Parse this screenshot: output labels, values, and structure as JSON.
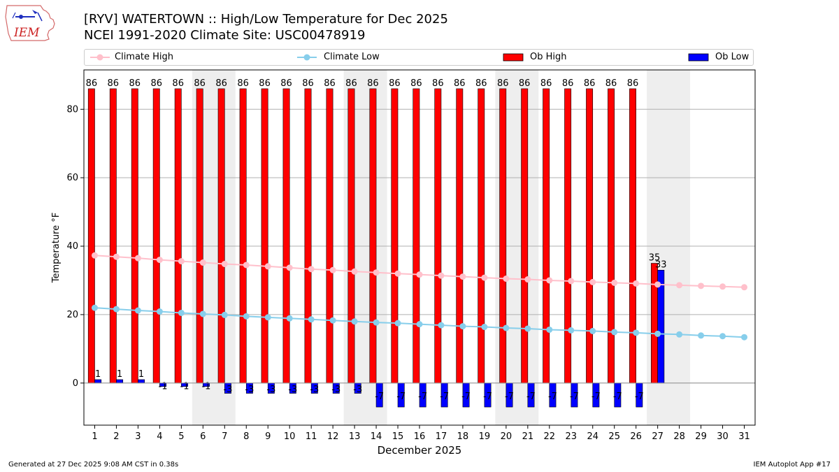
{
  "header": {
    "title_line1": "[RYV] WATERTOWN :: High/Low Temperature for Dec 2025",
    "title_line2": "NCEI 1991-2020 Climate Site: USC00478919"
  },
  "logo": {
    "text": "IEM"
  },
  "footer": {
    "generated": "Generated at 27 Dec 2025 9:08 AM CST in 0.38s",
    "app": "IEM Autoplot App #17"
  },
  "colors": {
    "ob_high": "#ff0000",
    "ob_low": "#0000ff",
    "climate_high": "#ffc0cb",
    "climate_low": "#87ceeb",
    "weekend_shade": "#eeeeee",
    "grid": "#b0b0b0"
  },
  "chart_data": {
    "type": "bar",
    "title": "[RYV] WATERTOWN :: High/Low Temperature for Dec 2025",
    "subtitle": "NCEI 1991-2020 Climate Site: USC00478919",
    "xlabel": "December 2025",
    "ylabel": "Temperature °F",
    "ylim": [
      -12.3,
      91.5
    ],
    "xlim": [
      0.5,
      31.5
    ],
    "yticks": [
      0,
      20,
      40,
      60,
      80
    ],
    "grid": true,
    "legend_position": "top",
    "categories": [
      "1",
      "2",
      "3",
      "4",
      "5",
      "6",
      "7",
      "8",
      "9",
      "10",
      "11",
      "12",
      "13",
      "14",
      "15",
      "16",
      "17",
      "18",
      "19",
      "20",
      "21",
      "22",
      "23",
      "24",
      "25",
      "26",
      "27",
      "28",
      "29",
      "30",
      "31"
    ],
    "shaded_days": [
      [
        6,
        7
      ],
      [
        13,
        14
      ],
      [
        20,
        21
      ],
      [
        27,
        28
      ]
    ],
    "series": [
      {
        "name": "Climate High",
        "kind": "line",
        "values": [
          37.3,
          36.9,
          36.5,
          36.0,
          35.6,
          35.2,
          34.8,
          34.5,
          34.1,
          33.7,
          33.3,
          33.0,
          32.6,
          32.3,
          32.0,
          31.7,
          31.4,
          31.1,
          30.8,
          30.5,
          30.3,
          30.0,
          29.8,
          29.5,
          29.3,
          29.1,
          28.8,
          28.6,
          28.4,
          28.2,
          28.0
        ]
      },
      {
        "name": "Climate Low",
        "kind": "line",
        "values": [
          22.0,
          21.6,
          21.2,
          20.9,
          20.5,
          20.2,
          19.9,
          19.5,
          19.2,
          18.9,
          18.6,
          18.3,
          18.0,
          17.7,
          17.5,
          17.2,
          16.9,
          16.6,
          16.4,
          16.1,
          15.9,
          15.6,
          15.4,
          15.2,
          14.9,
          14.7,
          14.4,
          14.2,
          13.9,
          13.7,
          13.4
        ]
      },
      {
        "name": "Ob High",
        "kind": "bar",
        "values": [
          86,
          86,
          86,
          86,
          86,
          86,
          86,
          86,
          86,
          86,
          86,
          86,
          86,
          86,
          86,
          86,
          86,
          86,
          86,
          86,
          86,
          86,
          86,
          86,
          86,
          86,
          35,
          null,
          null,
          null,
          null
        ]
      },
      {
        "name": "Ob Low",
        "kind": "bar",
        "values": [
          1,
          1,
          1,
          -1,
          -1,
          -1,
          -3,
          -3,
          -3,
          -3,
          -3,
          -3,
          -3,
          -7,
          -7,
          -7,
          -7,
          -7,
          -7,
          -7,
          -7,
          -7,
          -7,
          -7,
          -7,
          -7,
          33,
          null,
          null,
          null,
          null
        ]
      }
    ]
  }
}
